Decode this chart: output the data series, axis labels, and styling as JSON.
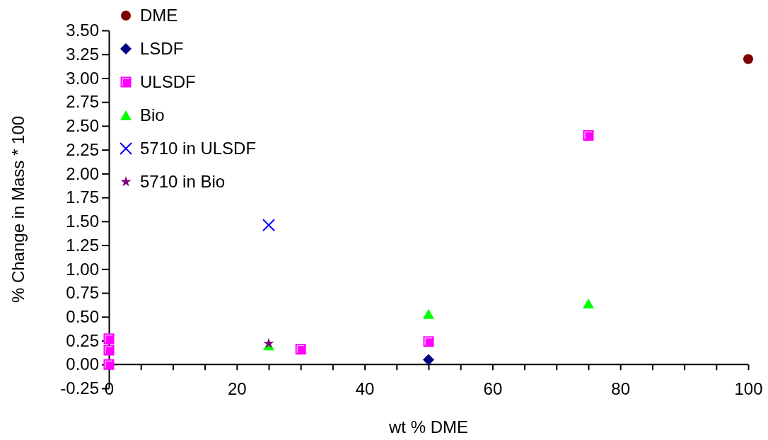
{
  "chart_data": {
    "type": "scatter",
    "xlabel": "wt % DME",
    "ylabel": "% Change in Mass * 100",
    "xlim": [
      0,
      100
    ],
    "xticks": [
      0,
      {
        "value": 5,
        "label": null
      },
      {
        "value": 10,
        "label": null
      },
      {
        "value": 15,
        "label": null
      },
      20,
      {
        "value": 25,
        "label": null
      },
      {
        "value": 30,
        "label": null
      },
      {
        "value": 35,
        "label": null
      },
      40,
      {
        "value": 45,
        "label": null
      },
      {
        "value": 50,
        "label": null
      },
      {
        "value": 55,
        "label": null
      },
      60,
      {
        "value": 65,
        "label": null
      },
      {
        "value": 70,
        "label": null
      },
      {
        "value": 75,
        "label": null
      },
      80,
      {
        "value": 85,
        "label": null
      },
      {
        "value": 90,
        "label": null
      },
      {
        "value": 95,
        "label": null
      },
      100
    ],
    "ylim": [
      -0.25,
      3.5
    ],
    "yticks": [
      {
        "value": -0.25,
        "label": "-0.25"
      },
      {
        "value": 0,
        "label": "0.00"
      },
      {
        "value": 0.25,
        "label": "0.25"
      },
      {
        "value": 0.5,
        "label": "0.50"
      },
      {
        "value": 0.75,
        "label": "0.75"
      },
      {
        "value": 1,
        "label": "1.00"
      },
      {
        "value": 1.25,
        "label": "1.25"
      },
      {
        "value": 1.5,
        "label": "1.50"
      },
      {
        "value": 1.75,
        "label": "1.75"
      },
      {
        "value": 2,
        "label": "2.00"
      },
      {
        "value": 2.25,
        "label": "2.25"
      },
      {
        "value": 2.5,
        "label": "2.50"
      },
      {
        "value": 2.75,
        "label": "2.75"
      },
      {
        "value": 3,
        "label": "3.00"
      },
      {
        "value": 3.25,
        "label": "3.25"
      },
      {
        "value": 3.5,
        "label": "3.50"
      }
    ],
    "grid": false,
    "legend": "top left",
    "series": [
      {
        "name": "DME",
        "color": "#800000",
        "marker": "circle",
        "x": [
          100
        ],
        "values": [
          3.2
        ]
      },
      {
        "name": "LSDF",
        "color": "#000080",
        "marker": "diamond",
        "x": [
          50
        ],
        "values": [
          0.05
        ]
      },
      {
        "name": "ULSDF",
        "color": "#ff00ff",
        "marker": "square",
        "x": [
          0,
          0,
          0,
          30,
          50,
          75
        ],
        "values": [
          0.27,
          0.15,
          0,
          0.16,
          0.24,
          2.4
        ]
      },
      {
        "name": "Bio",
        "color": "#00ff00",
        "marker": "triangle",
        "x": [
          25,
          50,
          75
        ],
        "values": [
          0.2,
          0.53,
          0.64
        ]
      },
      {
        "name": "5710 in ULSDF",
        "color": "#0000ff",
        "marker": "cross",
        "x": [
          25
        ],
        "values": [
          1.46
        ]
      },
      {
        "name": "5710 in Bio",
        "color": "#800080",
        "marker": "star",
        "x": [
          25
        ],
        "values": [
          0.22
        ]
      }
    ]
  }
}
